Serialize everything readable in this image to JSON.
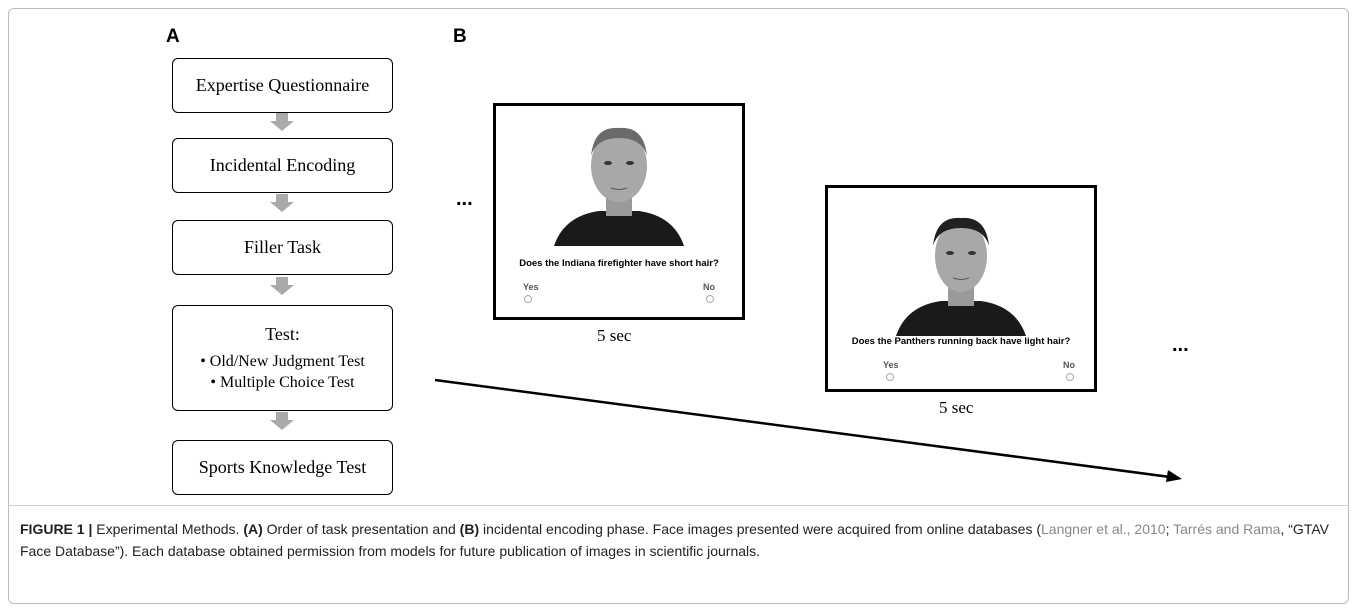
{
  "panel_a": {
    "label": "A",
    "steps": [
      {
        "label": "Expertise Questionnaire"
      },
      {
        "label": "Incidental Encoding"
      },
      {
        "label": "Filler Task"
      },
      {
        "label": "Test:",
        "items": [
          "Old/New Judgment Test",
          "Multiple Choice Test"
        ]
      },
      {
        "label": "Sports Knowledge Test"
      }
    ]
  },
  "panel_b": {
    "label": "B",
    "ellipsis": "...",
    "trials": [
      {
        "question": "Does the Indiana firefighter have short hair?",
        "yes": "Yes",
        "no": "No",
        "duration": "5 sec"
      },
      {
        "question": "Does the Panthers running back have light hair?",
        "yes": "Yes",
        "no": "No",
        "duration": "5 sec"
      }
    ]
  },
  "caption": {
    "figure_label": "FIGURE 1 |",
    "parts": [
      {
        "text": " Experimental Methods. ",
        "style": "plain"
      },
      {
        "text": "(A)",
        "style": "bold"
      },
      {
        "text": " Order of task presentation and ",
        "style": "plain"
      },
      {
        "text": "(B)",
        "style": "bold"
      },
      {
        "text": " incidental encoding phase. Face images presented were acquired from online databases (",
        "style": "plain"
      },
      {
        "text": "Langner et al., 2010",
        "style": "link"
      },
      {
        "text": "; ",
        "style": "plain"
      },
      {
        "text": "Tarrés and Rama",
        "style": "link"
      },
      {
        "text": ", “GTAV Face Database”). Each database obtained permission from models for future publication of images in scientific journals.",
        "style": "plain"
      }
    ]
  }
}
